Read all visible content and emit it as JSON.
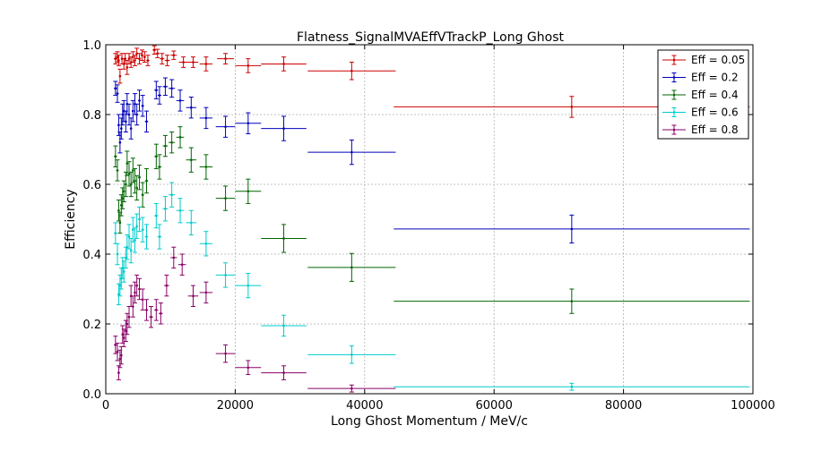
{
  "chart_data": {
    "type": "scatter",
    "title": "Flatness_SignalMVAEffVTrackP_Long Ghost",
    "xlabel": "Long Ghost Momentum / MeV/c",
    "ylabel": "Efficiency",
    "xlim": [
      0,
      100000
    ],
    "ylim": [
      0,
      1.0
    ],
    "grid": true,
    "legend_position": "top-right",
    "x_ticks": [
      0,
      20000,
      40000,
      60000,
      80000,
      100000
    ],
    "x_tick_labels": [
      "0",
      "20000",
      "40000",
      "60000",
      "80000",
      "100000"
    ],
    "y_ticks": [
      0,
      0.2,
      0.4,
      0.6,
      0.8,
      1.0
    ],
    "y_tick_labels": [
      "0.0",
      "0.2",
      "0.4",
      "0.6",
      "0.8",
      "1.0"
    ],
    "series": [
      {
        "name": "Eff = 0.05",
        "color": "#cc0000",
        "points": [
          {
            "x": 1500,
            "y": 0.96,
            "xe": 250,
            "ye": 0.015
          },
          {
            "x": 1800,
            "y": 0.965,
            "xe": 200,
            "ye": 0.015
          },
          {
            "x": 2000,
            "y": 0.955,
            "xe": 150,
            "ye": 0.015
          },
          {
            "x": 2200,
            "y": 0.91,
            "xe": 150,
            "ye": 0.02
          },
          {
            "x": 2500,
            "y": 0.96,
            "xe": 150,
            "ye": 0.015
          },
          {
            "x": 2800,
            "y": 0.945,
            "xe": 150,
            "ye": 0.015
          },
          {
            "x": 3000,
            "y": 0.96,
            "xe": 150,
            "ye": 0.015
          },
          {
            "x": 3300,
            "y": 0.935,
            "xe": 150,
            "ye": 0.02
          },
          {
            "x": 3600,
            "y": 0.96,
            "xe": 150,
            "ye": 0.015
          },
          {
            "x": 3900,
            "y": 0.95,
            "xe": 150,
            "ye": 0.015
          },
          {
            "x": 4200,
            "y": 0.965,
            "xe": 150,
            "ye": 0.015
          },
          {
            "x": 4500,
            "y": 0.955,
            "xe": 150,
            "ye": 0.015
          },
          {
            "x": 4800,
            "y": 0.975,
            "xe": 150,
            "ye": 0.015
          },
          {
            "x": 5200,
            "y": 0.96,
            "xe": 200,
            "ye": 0.015
          },
          {
            "x": 5600,
            "y": 0.97,
            "xe": 200,
            "ye": 0.015
          },
          {
            "x": 6000,
            "y": 0.965,
            "xe": 200,
            "ye": 0.015
          },
          {
            "x": 6500,
            "y": 0.955,
            "xe": 250,
            "ye": 0.015
          },
          {
            "x": 7500,
            "y": 0.985,
            "xe": 300,
            "ye": 0.012
          },
          {
            "x": 8000,
            "y": 0.975,
            "xe": 300,
            "ye": 0.012
          },
          {
            "x": 8700,
            "y": 0.96,
            "xe": 350,
            "ye": 0.015
          },
          {
            "x": 9500,
            "y": 0.955,
            "xe": 400,
            "ye": 0.015
          },
          {
            "x": 10500,
            "y": 0.97,
            "xe": 500,
            "ye": 0.012
          },
          {
            "x": 12000,
            "y": 0.95,
            "xe": 700,
            "ye": 0.015
          },
          {
            "x": 13500,
            "y": 0.95,
            "xe": 800,
            "ye": 0.015
          },
          {
            "x": 15500,
            "y": 0.945,
            "xe": 1000,
            "ye": 0.02
          },
          {
            "x": 18500,
            "y": 0.96,
            "xe": 1300,
            "ye": 0.015
          },
          {
            "x": 22000,
            "y": 0.94,
            "xe": 2000,
            "ye": 0.02
          },
          {
            "x": 27500,
            "y": 0.945,
            "xe": 3500,
            "ye": 0.02
          },
          {
            "x": 38000,
            "y": 0.925,
            "xe": 6800,
            "ye": 0.025
          },
          {
            "x": 72000,
            "y": 0.822,
            "xe": 27500,
            "ye": 0.03
          }
        ]
      },
      {
        "name": "Eff = 0.2",
        "color": "#0000bb",
        "points": [
          {
            "x": 1500,
            "y": 0.875,
            "xe": 250,
            "ye": 0.02
          },
          {
            "x": 1800,
            "y": 0.86,
            "xe": 200,
            "ye": 0.025
          },
          {
            "x": 2000,
            "y": 0.77,
            "xe": 150,
            "ye": 0.03
          },
          {
            "x": 2200,
            "y": 0.72,
            "xe": 150,
            "ye": 0.03
          },
          {
            "x": 2400,
            "y": 0.76,
            "xe": 150,
            "ye": 0.03
          },
          {
            "x": 2600,
            "y": 0.8,
            "xe": 150,
            "ye": 0.03
          },
          {
            "x": 2800,
            "y": 0.81,
            "xe": 150,
            "ye": 0.03
          },
          {
            "x": 3100,
            "y": 0.78,
            "xe": 150,
            "ye": 0.03
          },
          {
            "x": 3300,
            "y": 0.83,
            "xe": 150,
            "ye": 0.03
          },
          {
            "x": 3600,
            "y": 0.8,
            "xe": 150,
            "ye": 0.03
          },
          {
            "x": 3900,
            "y": 0.76,
            "xe": 150,
            "ye": 0.03
          },
          {
            "x": 4200,
            "y": 0.81,
            "xe": 150,
            "ye": 0.03
          },
          {
            "x": 4500,
            "y": 0.83,
            "xe": 150,
            "ye": 0.03
          },
          {
            "x": 4800,
            "y": 0.8,
            "xe": 150,
            "ye": 0.03
          },
          {
            "x": 5200,
            "y": 0.84,
            "xe": 200,
            "ye": 0.03
          },
          {
            "x": 5700,
            "y": 0.825,
            "xe": 200,
            "ye": 0.03
          },
          {
            "x": 6300,
            "y": 0.78,
            "xe": 250,
            "ye": 0.03
          },
          {
            "x": 7800,
            "y": 0.87,
            "xe": 300,
            "ye": 0.025
          },
          {
            "x": 8300,
            "y": 0.855,
            "xe": 300,
            "ye": 0.025
          },
          {
            "x": 9200,
            "y": 0.88,
            "xe": 400,
            "ye": 0.025
          },
          {
            "x": 10200,
            "y": 0.875,
            "xe": 500,
            "ye": 0.025
          },
          {
            "x": 11500,
            "y": 0.84,
            "xe": 600,
            "ye": 0.03
          },
          {
            "x": 13200,
            "y": 0.82,
            "xe": 800,
            "ye": 0.03
          },
          {
            "x": 15500,
            "y": 0.79,
            "xe": 1000,
            "ye": 0.03
          },
          {
            "x": 18500,
            "y": 0.765,
            "xe": 1500,
            "ye": 0.03
          },
          {
            "x": 22000,
            "y": 0.775,
            "xe": 2000,
            "ye": 0.03
          },
          {
            "x": 27500,
            "y": 0.76,
            "xe": 3500,
            "ye": 0.035
          },
          {
            "x": 38000,
            "y": 0.692,
            "xe": 6800,
            "ye": 0.035
          },
          {
            "x": 72000,
            "y": 0.472,
            "xe": 27500,
            "ye": 0.04
          }
        ]
      },
      {
        "name": "Eff = 0.4",
        "color": "#006600",
        "points": [
          {
            "x": 1500,
            "y": 0.68,
            "xe": 250,
            "ye": 0.03
          },
          {
            "x": 1800,
            "y": 0.64,
            "xe": 200,
            "ye": 0.03
          },
          {
            "x": 2000,
            "y": 0.525,
            "xe": 150,
            "ye": 0.03
          },
          {
            "x": 2200,
            "y": 0.49,
            "xe": 150,
            "ye": 0.03
          },
          {
            "x": 2400,
            "y": 0.54,
            "xe": 150,
            "ye": 0.03
          },
          {
            "x": 2600,
            "y": 0.56,
            "xe": 150,
            "ye": 0.03
          },
          {
            "x": 2800,
            "y": 0.58,
            "xe": 150,
            "ye": 0.03
          },
          {
            "x": 3100,
            "y": 0.6,
            "xe": 150,
            "ye": 0.035
          },
          {
            "x": 3300,
            "y": 0.66,
            "xe": 150,
            "ye": 0.035
          },
          {
            "x": 3600,
            "y": 0.63,
            "xe": 150,
            "ye": 0.035
          },
          {
            "x": 3900,
            "y": 0.6,
            "xe": 150,
            "ye": 0.035
          },
          {
            "x": 4200,
            "y": 0.64,
            "xe": 150,
            "ye": 0.035
          },
          {
            "x": 4500,
            "y": 0.61,
            "xe": 150,
            "ye": 0.035
          },
          {
            "x": 4800,
            "y": 0.59,
            "xe": 150,
            "ye": 0.035
          },
          {
            "x": 5200,
            "y": 0.62,
            "xe": 200,
            "ye": 0.035
          },
          {
            "x": 5700,
            "y": 0.57,
            "xe": 200,
            "ye": 0.035
          },
          {
            "x": 6300,
            "y": 0.61,
            "xe": 250,
            "ye": 0.035
          },
          {
            "x": 7800,
            "y": 0.68,
            "xe": 300,
            "ye": 0.035
          },
          {
            "x": 8300,
            "y": 0.65,
            "xe": 300,
            "ye": 0.035
          },
          {
            "x": 9200,
            "y": 0.71,
            "xe": 400,
            "ye": 0.03
          },
          {
            "x": 10200,
            "y": 0.72,
            "xe": 500,
            "ye": 0.03
          },
          {
            "x": 11500,
            "y": 0.735,
            "xe": 600,
            "ye": 0.03
          },
          {
            "x": 13200,
            "y": 0.67,
            "xe": 800,
            "ye": 0.035
          },
          {
            "x": 15500,
            "y": 0.65,
            "xe": 1000,
            "ye": 0.035
          },
          {
            "x": 18500,
            "y": 0.56,
            "xe": 1500,
            "ye": 0.035
          },
          {
            "x": 22000,
            "y": 0.58,
            "xe": 2000,
            "ye": 0.035
          },
          {
            "x": 27500,
            "y": 0.445,
            "xe": 3500,
            "ye": 0.04
          },
          {
            "x": 38000,
            "y": 0.362,
            "xe": 6800,
            "ye": 0.04
          },
          {
            "x": 72000,
            "y": 0.265,
            "xe": 27500,
            "ye": 0.035
          }
        ]
      },
      {
        "name": "Eff = 0.6",
        "color": "#00cccc",
        "points": [
          {
            "x": 1500,
            "y": 0.46,
            "xe": 250,
            "ye": 0.03
          },
          {
            "x": 1800,
            "y": 0.4,
            "xe": 200,
            "ye": 0.03
          },
          {
            "x": 2000,
            "y": 0.285,
            "xe": 150,
            "ye": 0.03
          },
          {
            "x": 2200,
            "y": 0.31,
            "xe": 150,
            "ye": 0.03
          },
          {
            "x": 2400,
            "y": 0.33,
            "xe": 150,
            "ye": 0.03
          },
          {
            "x": 2600,
            "y": 0.36,
            "xe": 150,
            "ye": 0.03
          },
          {
            "x": 2800,
            "y": 0.35,
            "xe": 150,
            "ye": 0.03
          },
          {
            "x": 3100,
            "y": 0.39,
            "xe": 150,
            "ye": 0.03
          },
          {
            "x": 3300,
            "y": 0.42,
            "xe": 150,
            "ye": 0.035
          },
          {
            "x": 3600,
            "y": 0.45,
            "xe": 150,
            "ye": 0.035
          },
          {
            "x": 3900,
            "y": 0.41,
            "xe": 150,
            "ye": 0.035
          },
          {
            "x": 4200,
            "y": 0.47,
            "xe": 150,
            "ye": 0.035
          },
          {
            "x": 4500,
            "y": 0.44,
            "xe": 150,
            "ye": 0.035
          },
          {
            "x": 4800,
            "y": 0.48,
            "xe": 150,
            "ye": 0.035
          },
          {
            "x": 5200,
            "y": 0.5,
            "xe": 200,
            "ye": 0.035
          },
          {
            "x": 5700,
            "y": 0.47,
            "xe": 200,
            "ye": 0.035
          },
          {
            "x": 6300,
            "y": 0.45,
            "xe": 250,
            "ye": 0.035
          },
          {
            "x": 7800,
            "y": 0.51,
            "xe": 300,
            "ye": 0.035
          },
          {
            "x": 8300,
            "y": 0.45,
            "xe": 300,
            "ye": 0.035
          },
          {
            "x": 9200,
            "y": 0.53,
            "xe": 400,
            "ye": 0.035
          },
          {
            "x": 10200,
            "y": 0.57,
            "xe": 500,
            "ye": 0.035
          },
          {
            "x": 11500,
            "y": 0.525,
            "xe": 600,
            "ye": 0.035
          },
          {
            "x": 13200,
            "y": 0.49,
            "xe": 800,
            "ye": 0.035
          },
          {
            "x": 15500,
            "y": 0.43,
            "xe": 1000,
            "ye": 0.035
          },
          {
            "x": 18500,
            "y": 0.34,
            "xe": 1500,
            "ye": 0.035
          },
          {
            "x": 22000,
            "y": 0.31,
            "xe": 2000,
            "ye": 0.035
          },
          {
            "x": 27500,
            "y": 0.195,
            "xe": 3500,
            "ye": 0.03
          },
          {
            "x": 38000,
            "y": 0.112,
            "xe": 6800,
            "ye": 0.025
          },
          {
            "x": 72000,
            "y": 0.02,
            "xe": 27500,
            "ye": 0.01
          }
        ]
      },
      {
        "name": "Eff = 0.8",
        "color": "#880066",
        "points": [
          {
            "x": 1500,
            "y": 0.14,
            "xe": 250,
            "ye": 0.025
          },
          {
            "x": 1800,
            "y": 0.12,
            "xe": 200,
            "ye": 0.025
          },
          {
            "x": 2000,
            "y": 0.06,
            "xe": 150,
            "ye": 0.02
          },
          {
            "x": 2200,
            "y": 0.1,
            "xe": 150,
            "ye": 0.025
          },
          {
            "x": 2400,
            "y": 0.11,
            "xe": 150,
            "ye": 0.025
          },
          {
            "x": 2600,
            "y": 0.17,
            "xe": 150,
            "ye": 0.025
          },
          {
            "x": 2800,
            "y": 0.16,
            "xe": 150,
            "ye": 0.025
          },
          {
            "x": 3100,
            "y": 0.18,
            "xe": 150,
            "ye": 0.03
          },
          {
            "x": 3300,
            "y": 0.2,
            "xe": 150,
            "ye": 0.03
          },
          {
            "x": 3600,
            "y": 0.22,
            "xe": 150,
            "ye": 0.03
          },
          {
            "x": 3900,
            "y": 0.28,
            "xe": 150,
            "ye": 0.03
          },
          {
            "x": 4200,
            "y": 0.25,
            "xe": 150,
            "ye": 0.03
          },
          {
            "x": 4500,
            "y": 0.29,
            "xe": 150,
            "ye": 0.03
          },
          {
            "x": 4800,
            "y": 0.31,
            "xe": 150,
            "ye": 0.03
          },
          {
            "x": 5200,
            "y": 0.3,
            "xe": 200,
            "ye": 0.03
          },
          {
            "x": 5700,
            "y": 0.27,
            "xe": 200,
            "ye": 0.03
          },
          {
            "x": 6300,
            "y": 0.24,
            "xe": 250,
            "ye": 0.03
          },
          {
            "x": 7000,
            "y": 0.22,
            "xe": 300,
            "ye": 0.03
          },
          {
            "x": 7800,
            "y": 0.24,
            "xe": 300,
            "ye": 0.03
          },
          {
            "x": 8500,
            "y": 0.23,
            "xe": 300,
            "ye": 0.03
          },
          {
            "x": 9400,
            "y": 0.31,
            "xe": 400,
            "ye": 0.03
          },
          {
            "x": 10500,
            "y": 0.39,
            "xe": 500,
            "ye": 0.03
          },
          {
            "x": 11800,
            "y": 0.37,
            "xe": 600,
            "ye": 0.03
          },
          {
            "x": 13500,
            "y": 0.28,
            "xe": 800,
            "ye": 0.03
          },
          {
            "x": 15500,
            "y": 0.29,
            "xe": 1000,
            "ye": 0.03
          },
          {
            "x": 18500,
            "y": 0.115,
            "xe": 1500,
            "ye": 0.025
          },
          {
            "x": 22000,
            "y": 0.075,
            "xe": 2000,
            "ye": 0.02
          },
          {
            "x": 27500,
            "y": 0.06,
            "xe": 3500,
            "ye": 0.02
          },
          {
            "x": 38000,
            "y": 0.015,
            "xe": 6800,
            "ye": 0.01
          }
        ]
      }
    ]
  }
}
